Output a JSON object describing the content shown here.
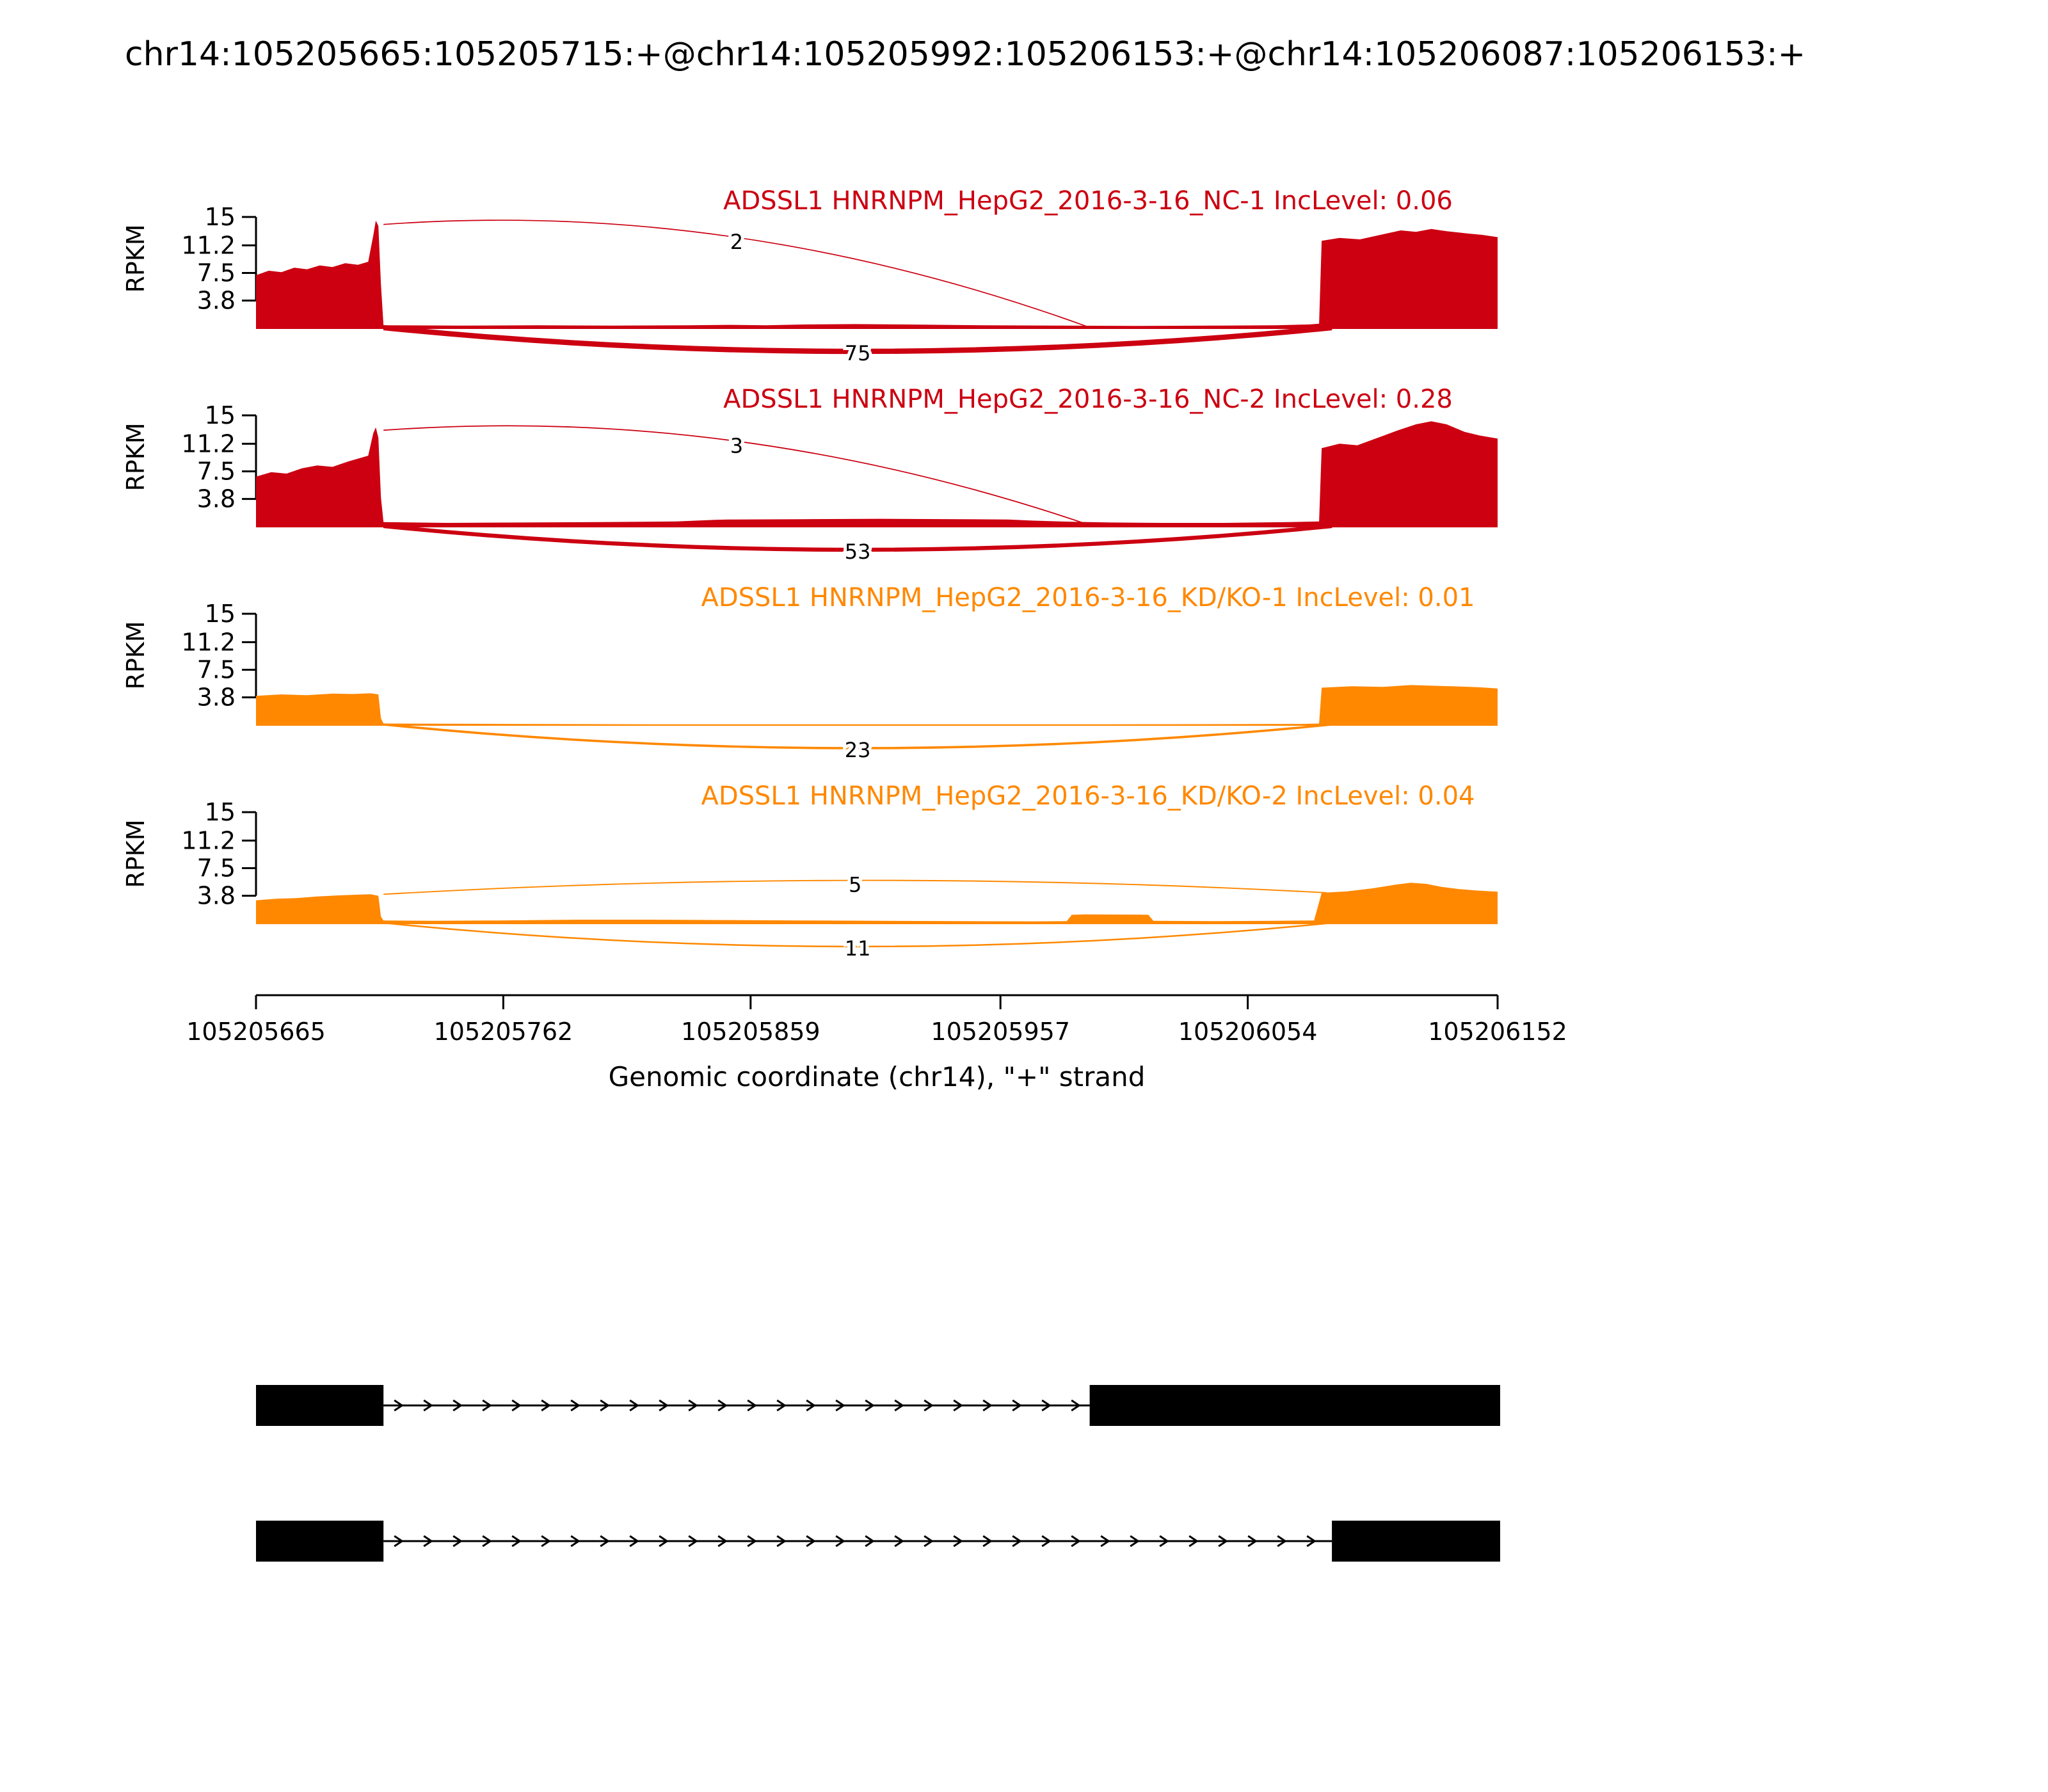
{
  "title": "chr14:105205665:105205715:+@chr14:105205992:105206153:+@chr14:105206087:105206153:+",
  "chart_data": {
    "type": "sashimi",
    "title": "chr14:105205665:105205715:+@chr14:105205992:105206153:+@chr14:105206087:105206153:+",
    "xlabel": "Genomic coordinate (chr14), \"+\" strand",
    "ylabel": "RPKM",
    "x_start": 105205665,
    "x_end": 105206152,
    "x_ticks": [
      105205665,
      105205762,
      105205859,
      105205957,
      105206054,
      105206152
    ],
    "y_ticks": [
      15,
      11.2,
      7.5,
      3.8
    ],
    "y_max": 15,
    "colors": {
      "nc": "#CC0011",
      "kd": "#FF8800",
      "transcript": "#000000"
    },
    "tracks": [
      {
        "label": "ADSSL1 HNRNPM_HepG2_2016-3-16_NC-1 IncLevel: 0.06",
        "sample": "NC-1",
        "inc_level": 0.06,
        "color": "#CC0011",
        "profile": [
          [
            105205665,
            7.2
          ],
          [
            105205670,
            7.8
          ],
          [
            105205675,
            7.6
          ],
          [
            105205680,
            8.2
          ],
          [
            105205685,
            8.0
          ],
          [
            105205690,
            8.5
          ],
          [
            105205695,
            8.3
          ],
          [
            105205700,
            8.8
          ],
          [
            105205705,
            8.6
          ],
          [
            105205709,
            9.0
          ],
          [
            105205711,
            12.5
          ],
          [
            105205712,
            14.5
          ],
          [
            105205713,
            13.8
          ],
          [
            105205714,
            6.0
          ],
          [
            105205715,
            0.5
          ],
          [
            105205745,
            0.45
          ],
          [
            105205775,
            0.5
          ],
          [
            105205805,
            0.45
          ],
          [
            105205835,
            0.5
          ],
          [
            105205850,
            0.55
          ],
          [
            105205865,
            0.5
          ],
          [
            105205880,
            0.6
          ],
          [
            105205900,
            0.65
          ],
          [
            105205920,
            0.6
          ],
          [
            105205950,
            0.5
          ],
          [
            105205980,
            0.45
          ],
          [
            105206010,
            0.4
          ],
          [
            105206040,
            0.45
          ],
          [
            105206065,
            0.5
          ],
          [
            105206078,
            0.6
          ],
          [
            105206082,
            0.7
          ],
          [
            105206083,
            11.8
          ],
          [
            105206090,
            12.2
          ],
          [
            105206098,
            12.0
          ],
          [
            105206106,
            12.6
          ],
          [
            105206114,
            13.2
          ],
          [
            105206120,
            13.0
          ],
          [
            105206126,
            13.4
          ],
          [
            105206132,
            13.1
          ],
          [
            105206140,
            12.8
          ],
          [
            105206146,
            12.6
          ],
          [
            105206152,
            12.3
          ]
        ],
        "junctions": [
          {
            "x1": 105205715,
            "y1": 14.0,
            "x2": 105205992,
            "y2": 0.2,
            "count": 2,
            "side": "top"
          },
          {
            "x1": 105205715,
            "x2": 105206087,
            "count": 75,
            "side": "bottom"
          }
        ]
      },
      {
        "label": "ADSSL1 HNRNPM_HepG2_2016-3-16_NC-2 IncLevel: 0.28",
        "sample": "NC-2",
        "inc_level": 0.28,
        "color": "#CC0011",
        "profile": [
          [
            105205665,
            6.8
          ],
          [
            105205671,
            7.4
          ],
          [
            105205677,
            7.2
          ],
          [
            105205683,
            7.9
          ],
          [
            105205689,
            8.3
          ],
          [
            105205695,
            8.1
          ],
          [
            105205701,
            8.8
          ],
          [
            105205706,
            9.3
          ],
          [
            105205709,
            9.6
          ],
          [
            105205711,
            12.6
          ],
          [
            105205712,
            13.4
          ],
          [
            105205713,
            12.0
          ],
          [
            105205714,
            4.0
          ],
          [
            105205715,
            0.7
          ],
          [
            105205740,
            0.6
          ],
          [
            105205770,
            0.65
          ],
          [
            105205800,
            0.7
          ],
          [
            105205830,
            0.8
          ],
          [
            105205845,
            1.0
          ],
          [
            105205850,
            1.05
          ],
          [
            105205880,
            1.1
          ],
          [
            105205910,
            1.15
          ],
          [
            105205940,
            1.1
          ],
          [
            105205960,
            1.05
          ],
          [
            105205970,
            0.9
          ],
          [
            105205985,
            0.75
          ],
          [
            105206000,
            0.65
          ],
          [
            105206020,
            0.6
          ],
          [
            105206045,
            0.6
          ],
          [
            105206070,
            0.7
          ],
          [
            105206082,
            0.8
          ],
          [
            105206083,
            10.6
          ],
          [
            105206090,
            11.2
          ],
          [
            105206097,
            11.0
          ],
          [
            105206105,
            12.0
          ],
          [
            105206113,
            13.0
          ],
          [
            105206120,
            13.8
          ],
          [
            105206126,
            14.2
          ],
          [
            105206132,
            13.8
          ],
          [
            105206139,
            12.8
          ],
          [
            105206145,
            12.3
          ],
          [
            105206152,
            11.9
          ]
        ],
        "junctions": [
          {
            "x1": 105205715,
            "y1": 13.0,
            "x2": 105205992,
            "y2": 0.3,
            "count": 3,
            "side": "top"
          },
          {
            "x1": 105205715,
            "x2": 105206087,
            "count": 53,
            "side": "bottom"
          }
        ]
      },
      {
        "label": "ADSSL1 HNRNPM_HepG2_2016-3-16_KD/KO-1 IncLevel: 0.01",
        "sample": "KD/KO-1",
        "inc_level": 0.01,
        "color": "#FF8800",
        "profile": [
          [
            105205665,
            4.0
          ],
          [
            105205675,
            4.2
          ],
          [
            105205685,
            4.1
          ],
          [
            105205695,
            4.3
          ],
          [
            105205703,
            4.25
          ],
          [
            105205710,
            4.35
          ],
          [
            105205713,
            4.2
          ],
          [
            105205714,
            1.0
          ],
          [
            105205715,
            0.3
          ],
          [
            105205760,
            0.25
          ],
          [
            105205820,
            0.2
          ],
          [
            105205880,
            0.2
          ],
          [
            105205940,
            0.2
          ],
          [
            105206000,
            0.2
          ],
          [
            105206050,
            0.22
          ],
          [
            105206075,
            0.25
          ],
          [
            105206082,
            0.3
          ],
          [
            105206083,
            5.1
          ],
          [
            105206095,
            5.3
          ],
          [
            105206107,
            5.2
          ],
          [
            105206118,
            5.45
          ],
          [
            105206128,
            5.35
          ],
          [
            105206138,
            5.25
          ],
          [
            105206145,
            5.15
          ],
          [
            105206152,
            5.0
          ]
        ],
        "junctions": [
          {
            "x1": 105205715,
            "x2": 105206087,
            "count": 23,
            "side": "bottom"
          }
        ]
      },
      {
        "label": "ADSSL1 HNRNPM_HepG2_2016-3-16_KD/KO-2 IncLevel: 0.04",
        "sample": "KD/KO-2",
        "inc_level": 0.04,
        "color": "#FF8800",
        "profile": [
          [
            105205665,
            3.2
          ],
          [
            105205673,
            3.4
          ],
          [
            105205681,
            3.5
          ],
          [
            105205689,
            3.7
          ],
          [
            105205697,
            3.85
          ],
          [
            105205705,
            3.95
          ],
          [
            105205710,
            4.0
          ],
          [
            105205713,
            3.8
          ],
          [
            105205714,
            1.0
          ],
          [
            105205715,
            0.5
          ],
          [
            105205735,
            0.45
          ],
          [
            105205760,
            0.5
          ],
          [
            105205790,
            0.6
          ],
          [
            105205820,
            0.6
          ],
          [
            105205850,
            0.55
          ],
          [
            105205880,
            0.5
          ],
          [
            105205910,
            0.45
          ],
          [
            105205940,
            0.4
          ],
          [
            105205970,
            0.38
          ],
          [
            105205983,
            0.4
          ],
          [
            105205985,
            1.25
          ],
          [
            105205990,
            1.3
          ],
          [
            105206010,
            1.28
          ],
          [
            105206015,
            1.25
          ],
          [
            105206017,
            0.45
          ],
          [
            105206040,
            0.4
          ],
          [
            105206065,
            0.45
          ],
          [
            105206080,
            0.5
          ],
          [
            105206083,
            4.2
          ],
          [
            105206093,
            4.4
          ],
          [
            105206103,
            4.8
          ],
          [
            105206112,
            5.3
          ],
          [
            105206118,
            5.55
          ],
          [
            105206124,
            5.4
          ],
          [
            105206130,
            5.0
          ],
          [
            105206137,
            4.7
          ],
          [
            105206144,
            4.5
          ],
          [
            105206152,
            4.35
          ]
        ],
        "junctions": [
          {
            "x1": 105205715,
            "y1": 4.0,
            "x2": 105206085,
            "y2": 4.2,
            "count": 5,
            "side": "top"
          },
          {
            "x1": 105205715,
            "x2": 105206087,
            "count": 11,
            "side": "bottom"
          }
        ]
      }
    ],
    "transcripts": [
      {
        "exons": [
          [
            105205665,
            105205715
          ],
          [
            105205992,
            105206153
          ]
        ],
        "strand": "+"
      },
      {
        "exons": [
          [
            105205665,
            105205715
          ],
          [
            105206087,
            105206153
          ]
        ],
        "strand": "+"
      }
    ]
  }
}
